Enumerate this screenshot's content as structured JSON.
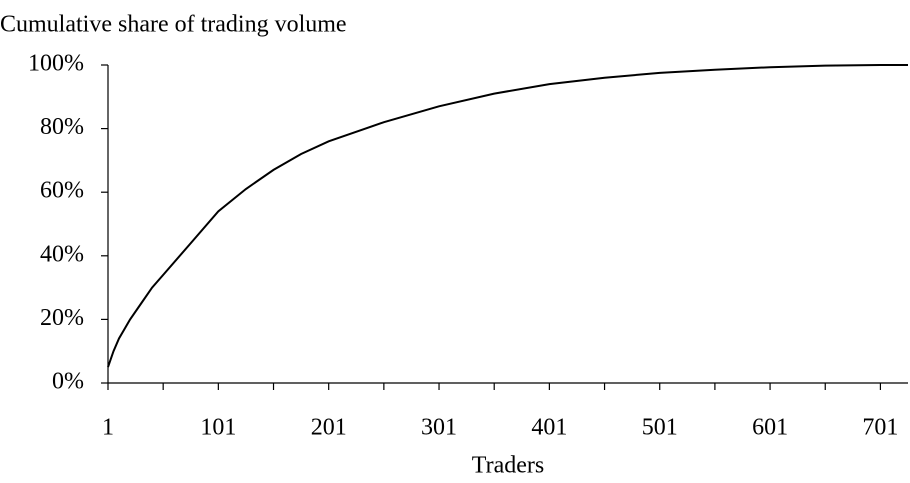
{
  "chart_data": {
    "type": "line",
    "title": "Cumulative share of trading volume",
    "x_label": "Traders",
    "x": [
      1,
      6,
      11,
      16,
      21,
      31,
      41,
      51,
      76,
      101,
      126,
      151,
      176,
      201,
      251,
      301,
      351,
      401,
      451,
      501,
      551,
      601,
      651,
      701,
      726
    ],
    "series": [
      {
        "name": "Cumulative share",
        "color": "#000000",
        "values": [
          5,
          10,
          14,
          17,
          20,
          25,
          30,
          34,
          44,
          54,
          61,
          67,
          72,
          76,
          82,
          87,
          91,
          94,
          96,
          97.5,
          98.5,
          99.3,
          99.8,
          100,
          100
        ]
      }
    ],
    "xlim": [
      1,
      726
    ],
    "xticks": [
      1,
      101,
      201,
      301,
      401,
      501,
      601,
      701
    ],
    "xminor_ticks": [
      51,
      151,
      251,
      351,
      451,
      551,
      651
    ],
    "ylim": [
      0,
      100
    ],
    "yticks": [
      {
        "value": 0,
        "label": "0%"
      },
      {
        "value": 20,
        "label": "20%"
      },
      {
        "value": 40,
        "label": "40%"
      },
      {
        "value": 60,
        "label": "60%"
      },
      {
        "value": 80,
        "label": "80%"
      },
      {
        "value": 100,
        "label": "100%"
      }
    ],
    "grid": false,
    "legend": false
  }
}
